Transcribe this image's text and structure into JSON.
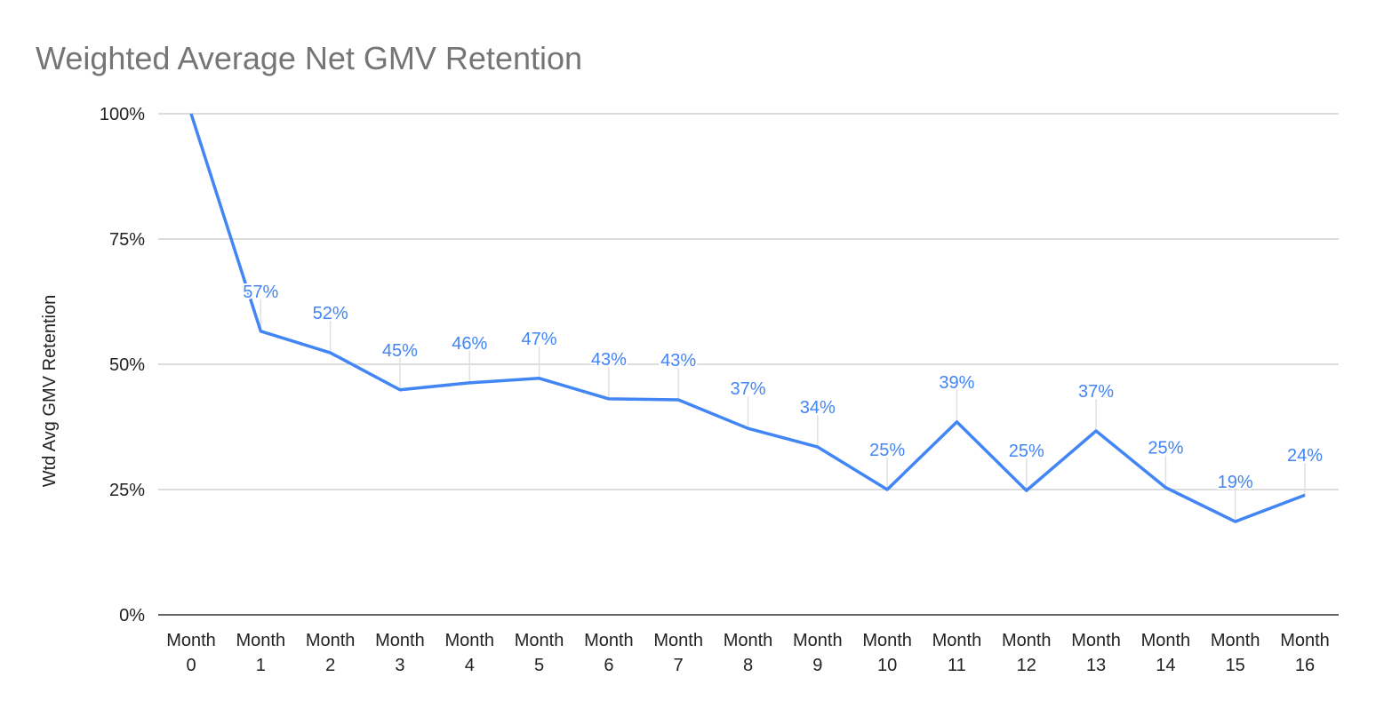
{
  "chart_data": {
    "type": "line",
    "title": "Weighted Average Net GMV Retention",
    "xlabel": "",
    "ylabel": "Wtd Avg GMV Retention",
    "ylim": [
      0,
      100
    ],
    "yticks": [
      "0%",
      "25%",
      "50%",
      "75%",
      "100%"
    ],
    "ytick_values": [
      0,
      25,
      50,
      75,
      100
    ],
    "grid": true,
    "legend": "none",
    "categories": [
      [
        "Month",
        "0"
      ],
      [
        "Month",
        "1"
      ],
      [
        "Month",
        "2"
      ],
      [
        "Month",
        "3"
      ],
      [
        "Month",
        "4"
      ],
      [
        "Month",
        "5"
      ],
      [
        "Month",
        "6"
      ],
      [
        "Month",
        "7"
      ],
      [
        "Month",
        "8"
      ],
      [
        "Month",
        "9"
      ],
      [
        "Month",
        "10"
      ],
      [
        "Month",
        "11"
      ],
      [
        "Month",
        "12"
      ],
      [
        "Month",
        "13"
      ],
      [
        "Month",
        "14"
      ],
      [
        "Month",
        "15"
      ],
      [
        "Month",
        "16"
      ]
    ],
    "series": [
      {
        "color": "#4285f4",
        "values": [
          100,
          56.6,
          52.3,
          44.9,
          46.3,
          47.2,
          43.1,
          42.9,
          37.2,
          33.5,
          25.0,
          38.5,
          24.8,
          36.7,
          25.4,
          18.6,
          23.9
        ],
        "data_labels": [
          "",
          "57%",
          "52%",
          "45%",
          "46%",
          "47%",
          "43%",
          "43%",
          "37%",
          "34%",
          "25%",
          "39%",
          "25%",
          "37%",
          "25%",
          "19%",
          "24%"
        ]
      }
    ]
  }
}
